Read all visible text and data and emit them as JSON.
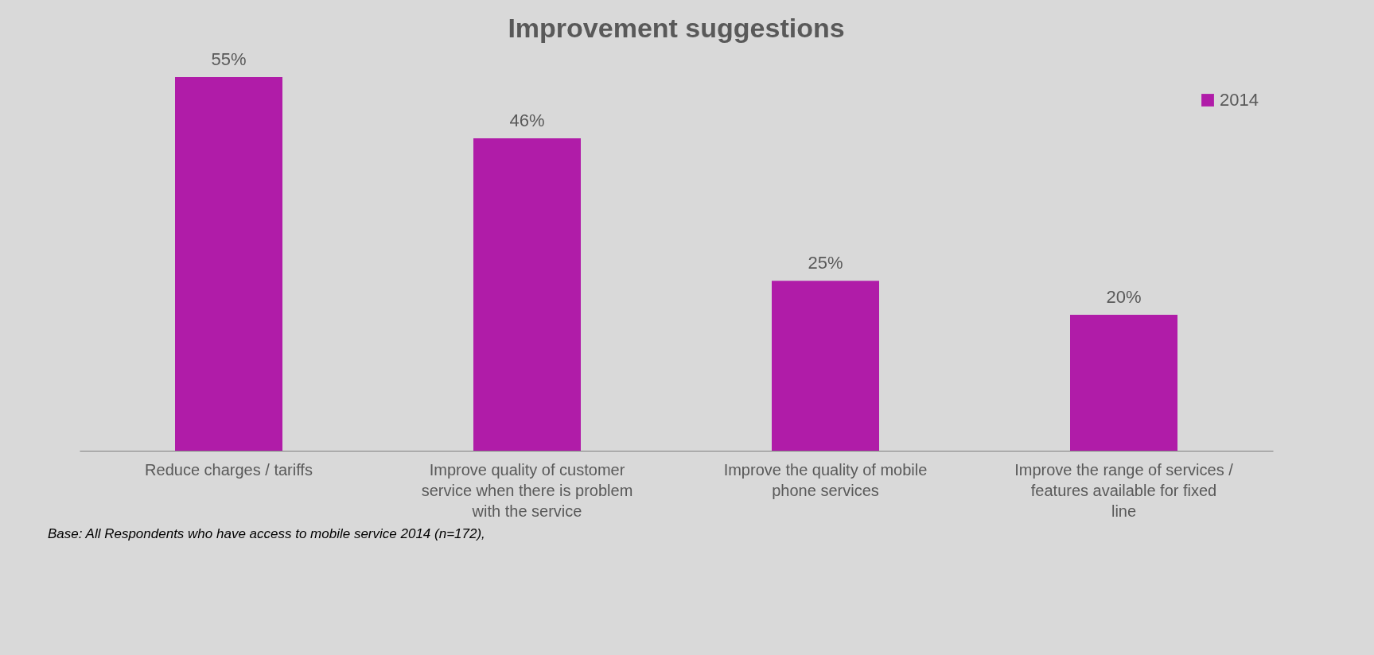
{
  "chart_data": {
    "type": "bar",
    "title": "Improvement suggestions",
    "categories": [
      "Reduce charges / tariffs",
      "Improve quality of customer service when there is problem with the service",
      "Improve the quality of mobile phone services",
      "Improve the range of services / features available for fixed line"
    ],
    "series": [
      {
        "name": "2014",
        "color": "#b01ca8",
        "values": [
          55,
          46,
          25,
          20
        ],
        "value_labels": [
          "55%",
          "46%",
          "25%",
          "20%"
        ]
      }
    ],
    "legend": "top right",
    "annotations": [
      "Base: All Respondents who have access to mobile service 2014 (n=172),"
    ]
  }
}
